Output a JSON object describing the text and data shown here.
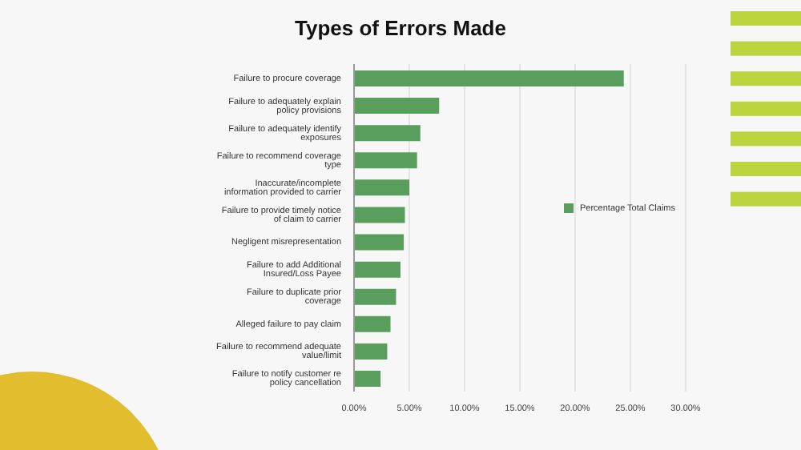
{
  "chart_data": {
    "type": "bar",
    "orientation": "horizontal",
    "title": "Types of Errors Made",
    "categories": [
      "Failure to procure coverage",
      "Failure to adequately explain policy provisions",
      "Failure to adequately identify exposures",
      "Failure to recommend coverage type",
      "Inaccurate/incomplete information provided to carrier",
      "Failure to provide timely notice of claim to carrier",
      "Negligent misrepresentation",
      "Failure to add Additional Insured/Loss Payee",
      "Failure to duplicate prior coverage",
      "Alleged failure to pay claim",
      "Failure to recommend adequate value/limit",
      "Failure to notify customer re policy cancellation"
    ],
    "series": [
      {
        "name": "Percentage Total Claims",
        "color": "#5a9e5e",
        "values": [
          24.4,
          7.7,
          6.0,
          5.7,
          5.0,
          4.6,
          4.5,
          4.2,
          3.8,
          3.3,
          3.0,
          2.4
        ]
      }
    ],
    "xlim": [
      0,
      30
    ],
    "xticks": [
      {
        "value": 0,
        "label": "0.00%"
      },
      {
        "value": 5,
        "label": "5.00%"
      },
      {
        "value": 10,
        "label": "10.00%"
      },
      {
        "value": 15,
        "label": "15.00%"
      },
      {
        "value": 20,
        "label": "20.00%"
      },
      {
        "value": 25,
        "label": "25.00%"
      },
      {
        "value": 30,
        "label": "30.00%"
      }
    ],
    "grid": "x",
    "legend": "right"
  }
}
